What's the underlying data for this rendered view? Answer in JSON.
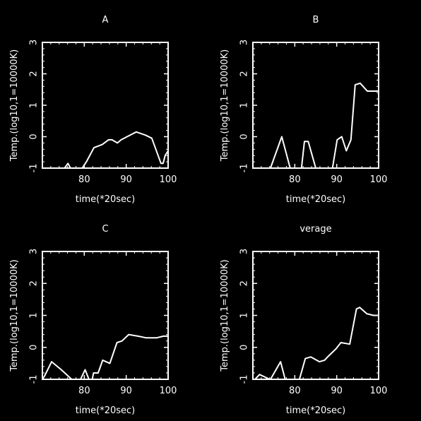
{
  "colors": {
    "background": "#000000",
    "foreground": "#ffffff"
  },
  "chart_data": [
    {
      "type": "line",
      "title": "A",
      "xlabel": "time(*20sec)",
      "ylabel": "Temp.(log10,1=10000K)",
      "xlim": [
        70,
        100
      ],
      "ylim": [
        -1,
        3
      ],
      "xticks": [
        80,
        90,
        100
      ],
      "yticks": [
        -1,
        0,
        1,
        2,
        3
      ],
      "grid": false,
      "series": [
        {
          "segments": [
            [
              [
                75.3,
                -1
              ],
              [
                76.1,
                -0.85
              ],
              [
                76.7,
                -1
              ]
            ],
            [
              [
                79.5,
                -1
              ],
              [
                80.5,
                -0.8
              ],
              [
                81.7,
                -0.5
              ],
              [
                82.3,
                -0.35
              ],
              [
                84.3,
                -0.25
              ],
              [
                85.8,
                -0.1
              ],
              [
                86.6,
                -0.1
              ],
              [
                87.9,
                -0.2
              ],
              [
                88.8,
                -0.1
              ],
              [
                90.2,
                0.0
              ],
              [
                92.4,
                0.15
              ],
              [
                94.6,
                0.05
              ],
              [
                96.1,
                -0.05
              ],
              [
                98.3,
                -0.85
              ],
              [
                98.8,
                -0.85
              ],
              [
                99.3,
                -0.6
              ],
              [
                100,
                -0.45
              ]
            ]
          ]
        }
      ]
    },
    {
      "type": "line",
      "title": "B",
      "xlabel": "time(*20sec)",
      "ylabel": "Temp.(log10,1=10000K)",
      "xlim": [
        70,
        100
      ],
      "ylim": [
        -1,
        3
      ],
      "xticks": [
        80,
        90,
        100
      ],
      "yticks": [
        -1,
        0,
        1,
        2,
        3
      ],
      "grid": false,
      "series": [
        {
          "segments": [
            [
              [
                74.2,
                -1
              ],
              [
                76.9,
                0.0
              ],
              [
                78.9,
                -1
              ]
            ],
            [
              [
                81.6,
                -1
              ],
              [
                82.3,
                -0.15
              ],
              [
                83.2,
                -0.15
              ],
              [
                85.0,
                -1
              ]
            ],
            [
              [
                89.0,
                -1
              ],
              [
                90.1,
                -0.1
              ],
              [
                91.2,
                0.0
              ],
              [
                92.3,
                -0.45
              ],
              [
                93.4,
                -0.1
              ],
              [
                94.4,
                1.65
              ],
              [
                95.6,
                1.7
              ],
              [
                97.3,
                1.45
              ],
              [
                99.0,
                1.45
              ],
              [
                100,
                1.45
              ]
            ]
          ]
        }
      ]
    },
    {
      "type": "line",
      "title": "C",
      "xlabel": "time(*20sec)",
      "ylabel": "Temp.(log10,1=10000K)",
      "xlim": [
        70,
        100
      ],
      "ylim": [
        -1,
        3
      ],
      "xticks": [
        80,
        90,
        100
      ],
      "yticks": [
        -1,
        0,
        1,
        2,
        3
      ],
      "grid": false,
      "series": [
        {
          "segments": [
            [
              [
                70.0,
                -1
              ],
              [
                70.5,
                -0.9
              ],
              [
                72.2,
                -0.45
              ],
              [
                74.5,
                -0.7
              ],
              [
                77.0,
                -1
              ]
            ],
            [
              [
                79.1,
                -1
              ],
              [
                80.2,
                -0.7
              ],
              [
                81.1,
                -1
              ]
            ],
            [
              [
                81.9,
                -1
              ],
              [
                82.2,
                -0.8
              ],
              [
                83.3,
                -0.8
              ],
              [
                84.4,
                -0.4
              ],
              [
                86.1,
                -0.5
              ],
              [
                87.8,
                0.15
              ],
              [
                89.0,
                0.2
              ],
              [
                90.6,
                0.4
              ],
              [
                92.8,
                0.35
              ],
              [
                94.7,
                0.3
              ],
              [
                97.3,
                0.3
              ],
              [
                98.9,
                0.35
              ],
              [
                100,
                0.35
              ]
            ]
          ]
        }
      ]
    },
    {
      "type": "line",
      "title": "verage",
      "xlabel": "time(*20sec)",
      "ylabel": "Temp.(log10,1=10000K)",
      "xlim": [
        70,
        100
      ],
      "ylim": [
        -1,
        3
      ],
      "xticks": [
        80,
        90,
        100
      ],
      "yticks": [
        -1,
        0,
        1,
        2,
        3
      ],
      "grid": false,
      "series": [
        {
          "segments": [
            [
              [
                70.5,
                -1
              ],
              [
                71.6,
                -0.85
              ],
              [
                74.0,
                -1
              ]
            ],
            [
              [
                74.2,
                -1
              ],
              [
                76.6,
                -0.45
              ],
              [
                77.7,
                -1
              ]
            ],
            [
              [
                81.1,
                -1
              ],
              [
                82.5,
                -0.35
              ],
              [
                83.8,
                -0.3
              ],
              [
                85.9,
                -0.45
              ],
              [
                87.1,
                -0.4
              ],
              [
                88.2,
                -0.25
              ],
              [
                89.8,
                -0.05
              ],
              [
                91.0,
                0.15
              ],
              [
                93.1,
                0.1
              ],
              [
                94.7,
                1.2
              ],
              [
                95.5,
                1.25
              ],
              [
                97.2,
                1.05
              ],
              [
                98.8,
                1.0
              ],
              [
                100,
                1.0
              ]
            ]
          ]
        }
      ]
    }
  ]
}
